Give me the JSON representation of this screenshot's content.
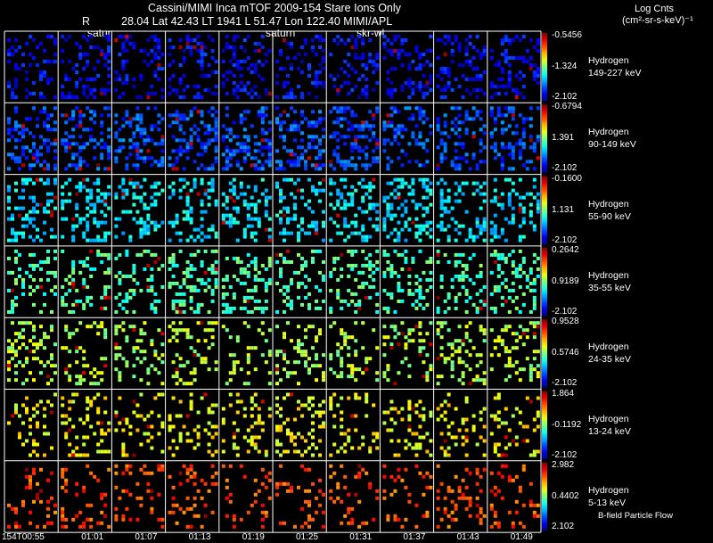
{
  "header": {
    "title": "Cassini/MIMI Inca mTOF  2009-154   Stare    Ions Only",
    "r_label": "R",
    "position_line": "28.04 Lat 42.43 LT 1941 L         51.47 Lon          122.40  MIMI/APL",
    "units_title": "Log Cnts",
    "units": "(cm²-sr-s-keV)⁻¹"
  },
  "overlays": {
    "satur1": "satur",
    "satur2": "saturn",
    "skr": "skr-wl"
  },
  "panel_rows": [
    {
      "species": "Hydrogen",
      "energy": "149-227 keV",
      "cb_max": "-0.5456",
      "cb_mid": "-1.324",
      "cb_min": "-2.102"
    },
    {
      "species": "Hydrogen",
      "energy": "90-149 keV",
      "cb_max": "-0.6794",
      "cb_mid": "1.391",
      "cb_min": "-2.102"
    },
    {
      "species": "Hydrogen",
      "energy": "55-90 keV",
      "cb_max": "-0.1600",
      "cb_mid": "1.131",
      "cb_min": "-2.102"
    },
    {
      "species": "Hydrogen",
      "energy": "35-55 keV",
      "cb_max": "0.2642",
      "cb_mid": "0.9189",
      "cb_min": "-2.102"
    },
    {
      "species": "Hydrogen",
      "energy": "24-35 keV",
      "cb_max": "0.9528",
      "cb_mid": "0.5746",
      "cb_min": "-2.102"
    },
    {
      "species": "Hydrogen",
      "energy": "13-24 keV",
      "cb_max": "1.864",
      "cb_mid": "-0.1192",
      "cb_min": "-2.102"
    },
    {
      "species": "Hydrogen",
      "energy": "5-13 keV",
      "cb_max": "2.982",
      "cb_mid": "0.4402",
      "cb_min": "2.102"
    }
  ],
  "time_labels": [
    "154T00:55",
    "01:01",
    "01:07",
    "01:13",
    "01:19",
    "01:25",
    "01:31",
    "01:37",
    "01:43",
    "01:49"
  ],
  "footer_note": "B-field  Particle Flow",
  "colors": {
    "background": "#000000",
    "grid_lines": "#ffffff"
  }
}
